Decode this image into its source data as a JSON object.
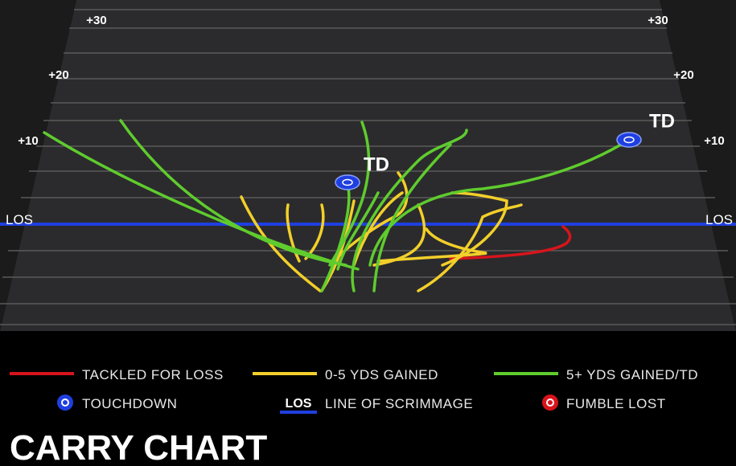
{
  "field": {
    "left_labels": [
      "+30",
      "+20",
      "+10",
      "LOS"
    ],
    "right_labels": [
      "+30",
      "+20",
      "+10",
      "LOS"
    ],
    "td_labels": [
      "TD",
      "TD"
    ]
  },
  "legend": {
    "items": [
      "TACKLED FOR LOSS",
      "0-5 YDS GAINED",
      "5+ YDS GAINED/TD",
      "TOUCHDOWN",
      "LINE OF SCRIMMAGE",
      "FUMBLE LOST"
    ],
    "los_icon": "LOS"
  },
  "title": "CARRY CHART"
}
